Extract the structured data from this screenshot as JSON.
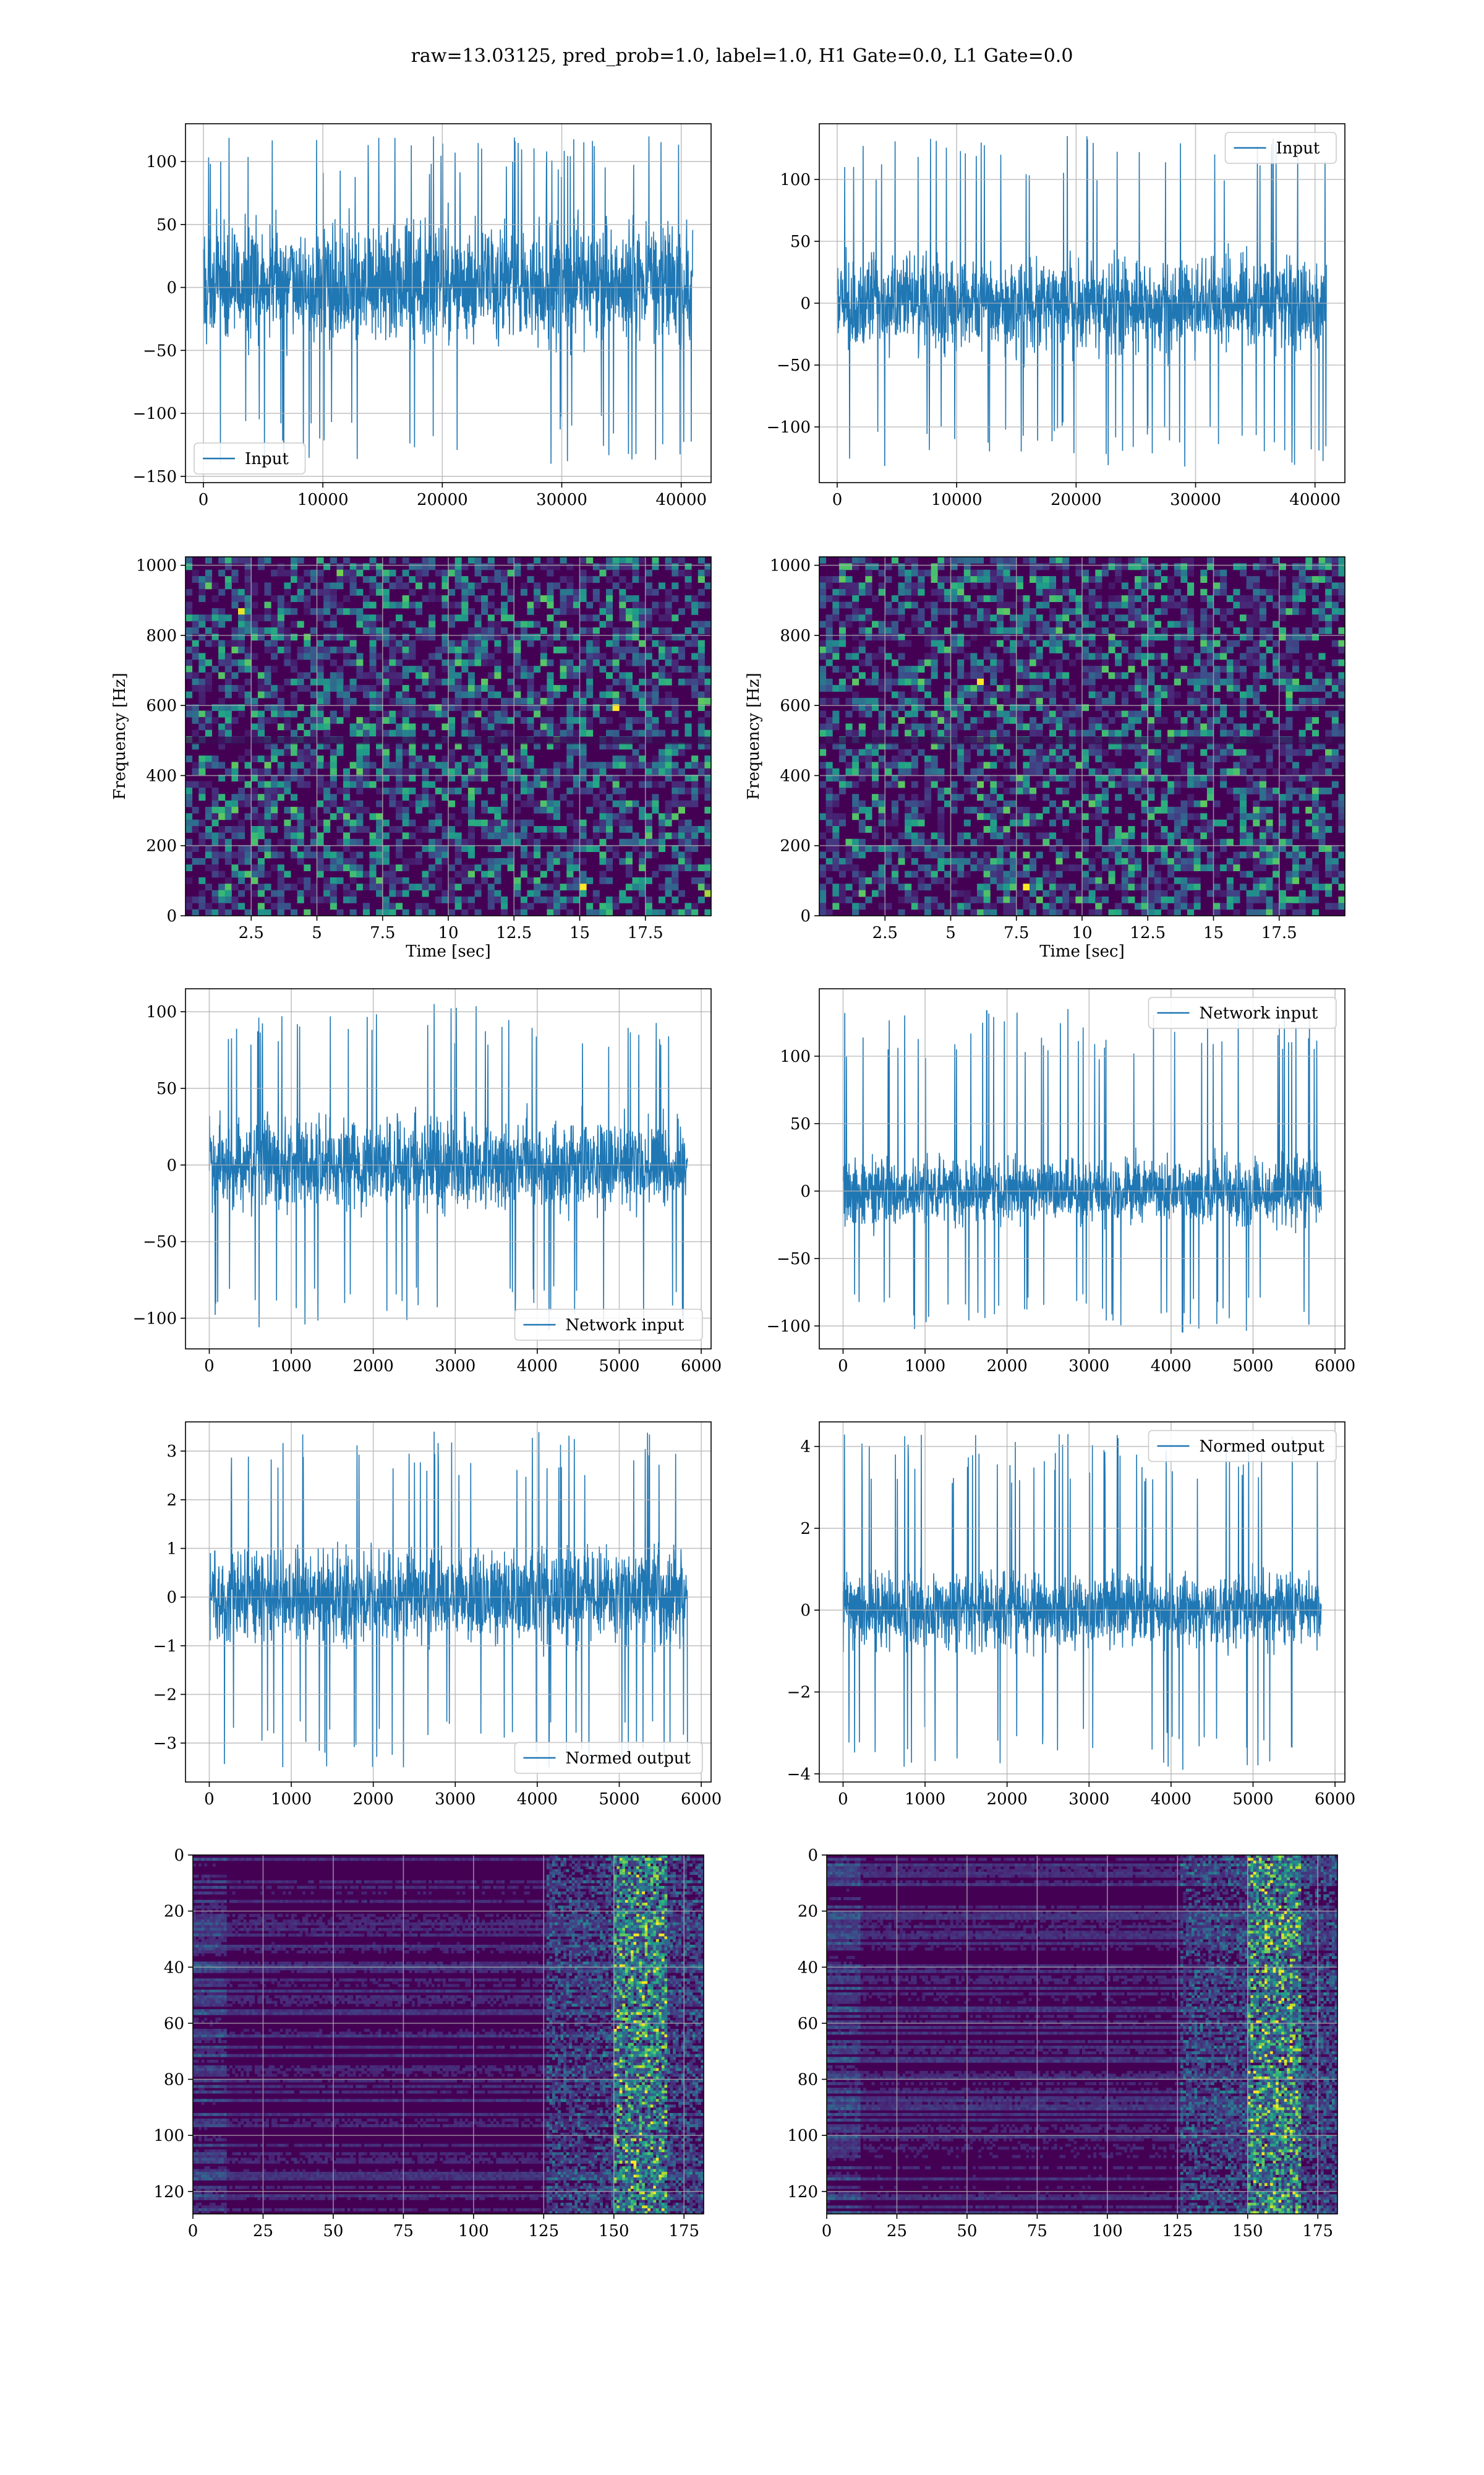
{
  "figure": {
    "suptitle": "raw=13.03125, pred_prob=1.0, label=1.0, H1 Gate=0.0, L1 Gate=0.0",
    "colors": {
      "line": "#1f77b4",
      "grid": "#b0b0b0",
      "viridis_low": "#440154",
      "viridis_high": "#fde725"
    }
  },
  "chart_data": [
    {
      "id": "h1-input",
      "type": "line",
      "series": [
        {
          "name": "Input",
          "n_points": 40960
        }
      ],
      "xlabel": "",
      "ylabel": "",
      "xlim": [
        -1500,
        42500
      ],
      "ylim": [
        -155,
        130
      ],
      "xticks": [
        0,
        10000,
        20000,
        30000,
        40000
      ],
      "yticks": [
        -150,
        -100,
        -50,
        0,
        50,
        100
      ],
      "envelope": {
        "x_start": 0,
        "x_end": 40960,
        "core_low": -60,
        "core_high": 72,
        "peak_low": -140,
        "peak_high": 120
      },
      "grid": true,
      "legend": "lower left"
    },
    {
      "id": "l1-input",
      "type": "line",
      "series": [
        {
          "name": "Input",
          "n_points": 40960
        }
      ],
      "xlabel": "",
      "ylabel": "",
      "xlim": [
        -1500,
        42500
      ],
      "ylim": [
        -145,
        145
      ],
      "xticks": [
        0,
        10000,
        20000,
        30000,
        40000
      ],
      "yticks": [
        -100,
        -50,
        0,
        50,
        100
      ],
      "envelope": {
        "x_start": 0,
        "x_end": 40960,
        "core_low": -55,
        "core_high": 55,
        "peak_low": -132,
        "peak_high": 135
      },
      "grid": true,
      "legend": "upper right"
    },
    {
      "id": "h1-spectrogram",
      "type": "heatmap",
      "xlabel": "Time [sec]",
      "ylabel": "Frequency [Hz]",
      "xlim": [
        0,
        20
      ],
      "ylim": [
        0,
        1024
      ],
      "xticks": [
        2.5,
        5.0,
        7.5,
        10.0,
        12.5,
        15.0,
        17.5
      ],
      "yticks": [
        0,
        200,
        400,
        600,
        800,
        1000
      ],
      "colormap": "viridis",
      "grid": true
    },
    {
      "id": "l1-spectrogram",
      "type": "heatmap",
      "xlabel": "Time [sec]",
      "ylabel": "Frequency [Hz]",
      "xlim": [
        0,
        20
      ],
      "ylim": [
        0,
        1024
      ],
      "xticks": [
        2.5,
        5.0,
        7.5,
        10.0,
        12.5,
        15.0,
        17.5
      ],
      "yticks": [
        0,
        200,
        400,
        600,
        800,
        1000
      ],
      "colormap": "viridis",
      "grid": true
    },
    {
      "id": "h1-network-input",
      "type": "line",
      "series": [
        {
          "name": "Network input",
          "n_points": 5832
        }
      ],
      "xlabel": "",
      "ylabel": "",
      "xlim": [
        -290,
        6120
      ],
      "ylim": [
        -120,
        115
      ],
      "xticks": [
        0,
        1000,
        2000,
        3000,
        4000,
        5000,
        6000
      ],
      "yticks": [
        -100,
        -50,
        0,
        50,
        100
      ],
      "envelope": {
        "x_start": 0,
        "x_end": 5832,
        "core_low": -40,
        "core_high": 45,
        "peak_low": -108,
        "peak_high": 105
      },
      "grid": true,
      "legend": "lower right"
    },
    {
      "id": "l1-network-input",
      "type": "line",
      "series": [
        {
          "name": "Network input",
          "n_points": 5832
        }
      ],
      "xlabel": "",
      "ylabel": "",
      "xlim": [
        -290,
        6120
      ],
      "ylim": [
        -117,
        150
      ],
      "xticks": [
        0,
        1000,
        2000,
        3000,
        4000,
        5000,
        6000
      ],
      "yticks": [
        -100,
        -50,
        0,
        50,
        100
      ],
      "envelope": {
        "x_start": 0,
        "x_end": 5832,
        "core_low": -35,
        "core_high": 35,
        "peak_low": -105,
        "peak_high": 135
      },
      "grid": true,
      "legend": "upper right"
    },
    {
      "id": "h1-normed-output",
      "type": "line",
      "series": [
        {
          "name": "Normed output",
          "n_points": 5832
        }
      ],
      "xlabel": "",
      "ylabel": "",
      "xlim": [
        -290,
        6120
      ],
      "ylim": [
        -3.8,
        3.6
      ],
      "xticks": [
        0,
        1000,
        2000,
        3000,
        4000,
        5000,
        6000
      ],
      "yticks": [
        -3,
        -2,
        -1,
        0,
        1,
        2,
        3
      ],
      "envelope": {
        "x_start": 0,
        "x_end": 5832,
        "core_low": -1.3,
        "core_high": 1.4,
        "peak_low": -3.5,
        "peak_high": 3.4
      },
      "grid": true,
      "legend": "lower right"
    },
    {
      "id": "l1-normed-output",
      "type": "line",
      "series": [
        {
          "name": "Normed output",
          "n_points": 5832
        }
      ],
      "xlabel": "",
      "ylabel": "",
      "xlim": [
        -290,
        6120
      ],
      "ylim": [
        -4.2,
        4.6
      ],
      "xticks": [
        0,
        1000,
        2000,
        3000,
        4000,
        5000,
        6000
      ],
      "yticks": [
        -4,
        -2,
        0,
        2,
        4
      ],
      "envelope": {
        "x_start": 0,
        "x_end": 5832,
        "core_low": -1.3,
        "core_high": 1.3,
        "peak_low": -3.9,
        "peak_high": 4.3
      },
      "grid": true,
      "legend": "upper right"
    },
    {
      "id": "h1-feature-map",
      "type": "heatmap",
      "xlabel": "",
      "ylabel": "",
      "xlim": [
        0,
        182
      ],
      "ylim": [
        128,
        0
      ],
      "xticks": [
        0,
        25,
        50,
        75,
        100,
        125,
        150,
        175
      ],
      "yticks": [
        0,
        20,
        40,
        60,
        80,
        100,
        120
      ],
      "colormap": "viridis",
      "grid": true
    },
    {
      "id": "l1-feature-map",
      "type": "heatmap",
      "xlabel": "",
      "ylabel": "",
      "xlim": [
        0,
        182
      ],
      "ylim": [
        128,
        0
      ],
      "xticks": [
        0,
        25,
        50,
        75,
        100,
        125,
        150,
        175
      ],
      "yticks": [
        0,
        20,
        40,
        60,
        80,
        100,
        120
      ],
      "colormap": "viridis",
      "grid": true
    }
  ]
}
